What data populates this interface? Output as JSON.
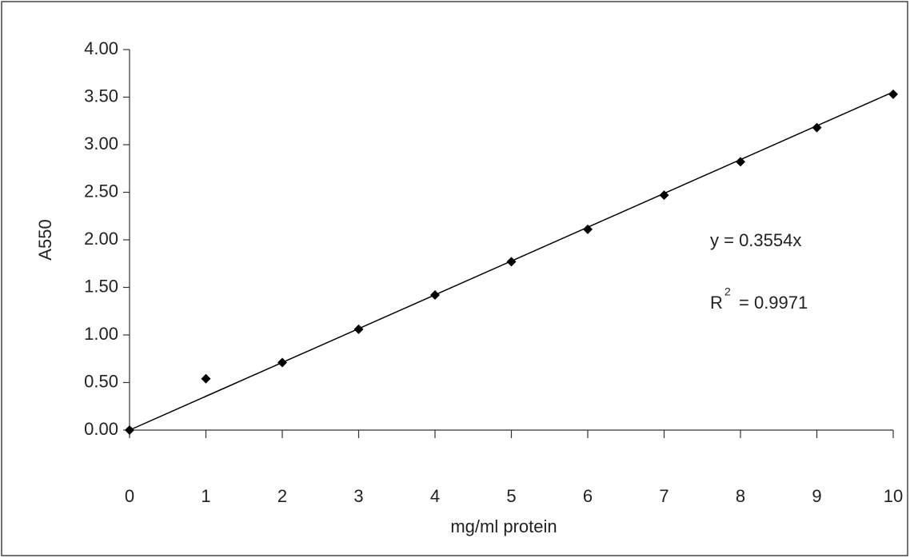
{
  "chart_data": {
    "type": "scatter",
    "x_label": "mg/ml protein",
    "y_label": "A550",
    "series": [
      {
        "color": "#000000",
        "x": [
          0,
          1,
          2,
          3,
          4,
          5,
          6,
          7,
          8,
          9,
          10
        ],
        "values": [
          0,
          0.54,
          0.71,
          1.06,
          1.42,
          1.77,
          2.11,
          2.47,
          2.82,
          3.18,
          3.53
        ]
      }
    ],
    "trendline": {
      "slope": 0.3554,
      "equation": "y = 0.3554x",
      "r2_base": "R",
      "r2_sup": "2",
      "r2_text": "= 0.9971",
      "color": "#000000"
    },
    "xlim": [
      0,
      10
    ],
    "xticks": [
      0,
      1,
      2,
      3,
      4,
      5,
      6,
      7,
      8,
      9,
      10
    ],
    "ylim": [
      0,
      4
    ],
    "yticks": [
      {
        "value": 0,
        "label": "0.00"
      },
      {
        "value": 0.5,
        "label": "0.50"
      },
      {
        "value": 1,
        "label": "1.00"
      },
      {
        "value": 1.5,
        "label": "1.50"
      },
      {
        "value": 2,
        "label": "2.00"
      },
      {
        "value": 2.5,
        "label": "2.50"
      },
      {
        "value": 3,
        "label": "3.00"
      },
      {
        "value": 3.5,
        "label": "3.50"
      },
      {
        "value": 4,
        "label": "4.00"
      }
    ],
    "grid": false
  }
}
